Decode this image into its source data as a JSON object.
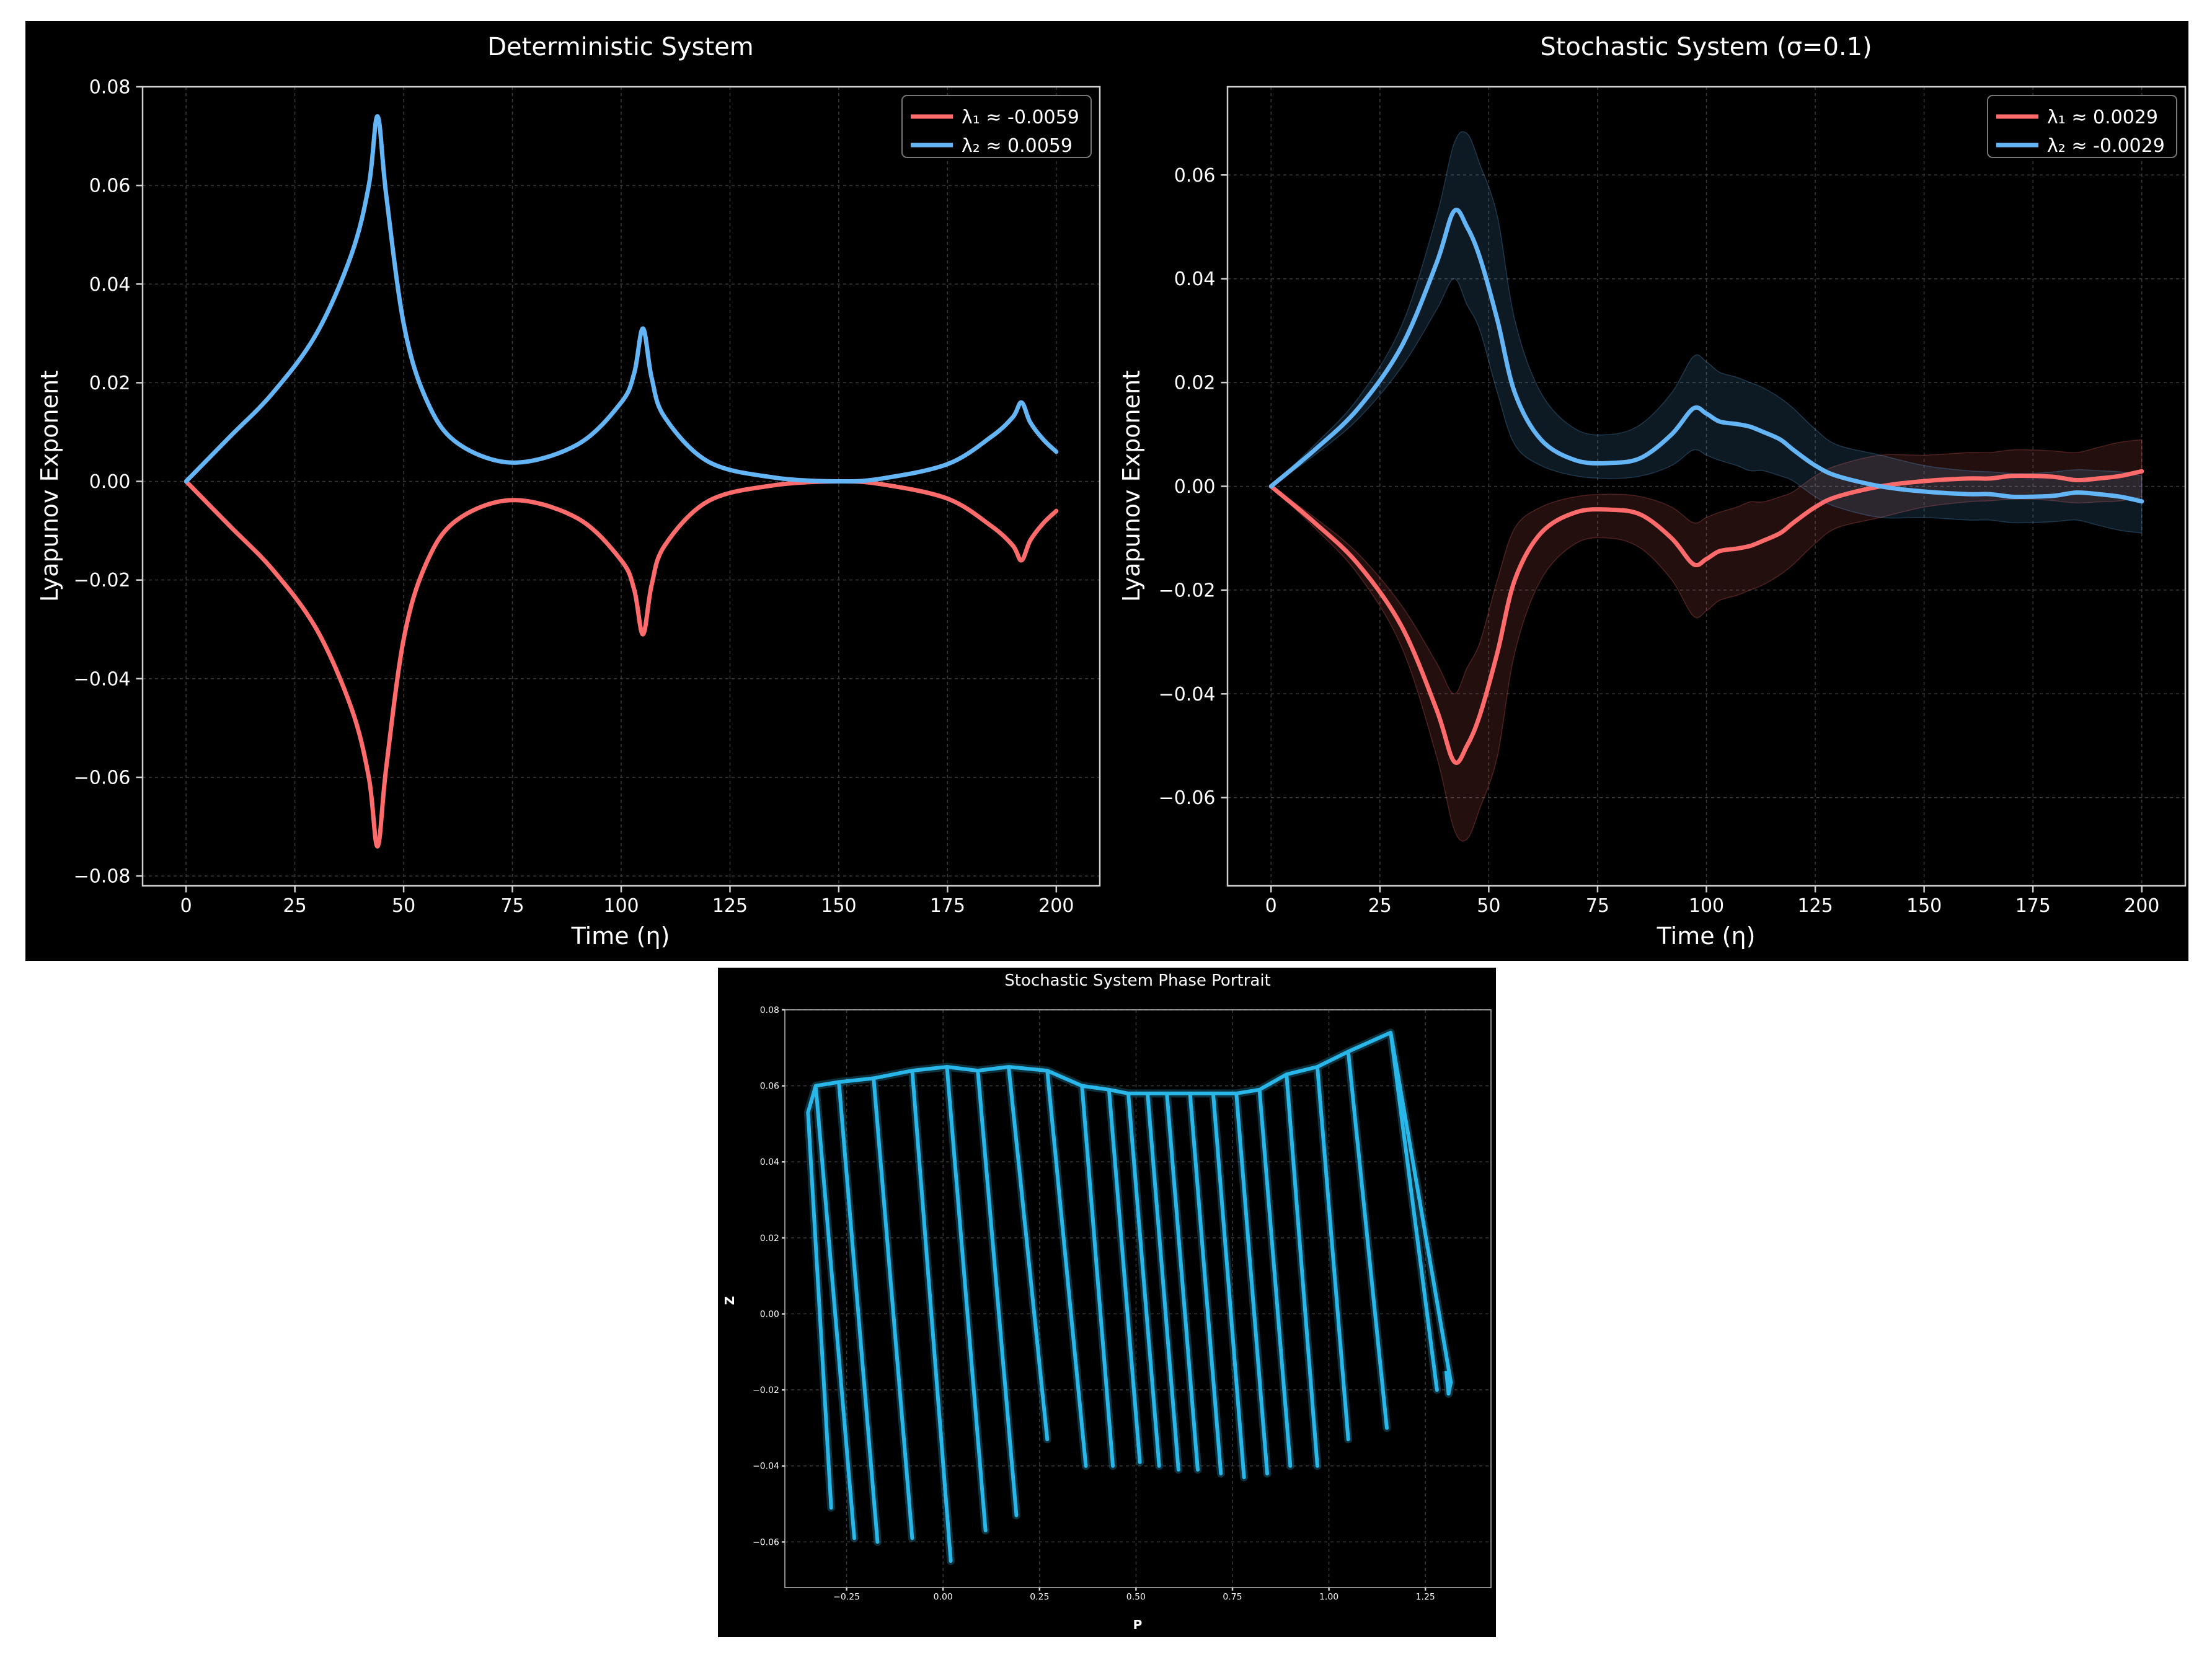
{
  "chart_data": [
    {
      "type": "line",
      "title": "Deterministic System",
      "xlabel": "Time (η)",
      "ylabel": "Lyapunov Exponent",
      "xlim": [
        -10,
        210
      ],
      "ylim": [
        -0.082,
        0.08
      ],
      "xticks": [
        0,
        25,
        50,
        75,
        100,
        125,
        150,
        175,
        200
      ],
      "yticks": [
        -0.08,
        -0.06,
        -0.04,
        -0.02,
        0.0,
        0.02,
        0.04,
        0.06,
        0.08
      ],
      "xtick_labels": [
        "0",
        "25",
        "50",
        "75",
        "100",
        "125",
        "150",
        "175",
        "200"
      ],
      "ytick_labels": [
        "−0.08",
        "−0.06",
        "−0.04",
        "−0.02",
        "0.00",
        "0.02",
        "0.04",
        "0.06",
        "0.08"
      ],
      "grid": true,
      "legend_position": "top-right",
      "series": [
        {
          "name": "λ₁ ≈ -0.0059",
          "color": "#ff6b6b",
          "x": [
            0,
            10,
            20,
            30,
            38,
            42,
            44,
            46,
            50,
            55,
            62,
            75,
            90,
            100,
            103,
            105,
            107,
            110,
            120,
            135,
            150,
            160,
            175,
            185,
            190,
            192,
            194,
            197,
            200
          ],
          "y": [
            0,
            -0.009,
            -0.018,
            -0.03,
            -0.046,
            -0.06,
            -0.074,
            -0.058,
            -0.032,
            -0.017,
            -0.008,
            -0.0038,
            -0.0075,
            -0.016,
            -0.022,
            -0.031,
            -0.021,
            -0.013,
            -0.004,
            -0.0008,
            0,
            -0.0006,
            -0.0035,
            -0.009,
            -0.013,
            -0.016,
            -0.012,
            -0.0085,
            -0.006
          ]
        },
        {
          "name": "λ₂ ≈ 0.0059",
          "color": "#64b5f6",
          "x": [
            0,
            10,
            20,
            30,
            38,
            42,
            44,
            46,
            50,
            55,
            62,
            75,
            90,
            100,
            103,
            105,
            107,
            110,
            120,
            135,
            150,
            160,
            175,
            185,
            190,
            192,
            194,
            197,
            200
          ],
          "y": [
            0,
            0.009,
            0.018,
            0.03,
            0.046,
            0.06,
            0.074,
            0.058,
            0.032,
            0.017,
            0.008,
            0.0038,
            0.0075,
            0.016,
            0.022,
            0.031,
            0.021,
            0.013,
            0.004,
            0.0008,
            0,
            0.0006,
            0.0035,
            0.009,
            0.013,
            0.016,
            0.012,
            0.0085,
            0.006
          ]
        }
      ]
    },
    {
      "type": "line",
      "title": "Stochastic System (σ=0.1)",
      "xlabel": "Time (η)",
      "ylabel": "Lyapunov Exponent",
      "xlim": [
        -10,
        210
      ],
      "ylim": [
        -0.077,
        0.077
      ],
      "xticks": [
        0,
        25,
        50,
        75,
        100,
        125,
        150,
        175,
        200
      ],
      "yticks": [
        -0.06,
        -0.04,
        -0.02,
        0.0,
        0.02,
        0.04,
        0.06
      ],
      "xtick_labels": [
        "0",
        "25",
        "50",
        "75",
        "100",
        "125",
        "150",
        "175",
        "200"
      ],
      "ytick_labels": [
        "−0.06",
        "−0.04",
        "−0.02",
        "0.00",
        "0.02",
        "0.04",
        "0.06"
      ],
      "grid": true,
      "legend_position": "top-right",
      "series": [
        {
          "name": "λ₁ ≈ 0.0029",
          "color": "#ff6b6b",
          "x": [
            0,
            10,
            20,
            30,
            38,
            42,
            45,
            48,
            52,
            56,
            62,
            70,
            78,
            85,
            92,
            97,
            100,
            103,
            107,
            110,
            113,
            117,
            120,
            125,
            130,
            140,
            150,
            160,
            165,
            170,
            175,
            180,
            185,
            190,
            195,
            200
          ],
          "y": [
            0,
            -0.007,
            -0.015,
            -0.027,
            -0.043,
            -0.053,
            -0.05,
            -0.044,
            -0.032,
            -0.018,
            -0.009,
            -0.005,
            -0.0045,
            -0.0055,
            -0.01,
            -0.015,
            -0.014,
            -0.0125,
            -0.012,
            -0.0115,
            -0.0105,
            -0.009,
            -0.007,
            -0.004,
            -0.002,
            0.0,
            0.001,
            0.0015,
            0.0015,
            0.002,
            0.002,
            0.0018,
            0.0012,
            0.0015,
            0.002,
            0.0029
          ],
          "band_low": [
            0,
            -0.008,
            -0.017,
            -0.031,
            -0.052,
            -0.066,
            -0.068,
            -0.062,
            -0.052,
            -0.032,
            -0.018,
            -0.011,
            -0.01,
            -0.012,
            -0.018,
            -0.025,
            -0.024,
            -0.022,
            -0.021,
            -0.02,
            -0.019,
            -0.017,
            -0.015,
            -0.011,
            -0.008,
            -0.006,
            -0.004,
            -0.003,
            -0.0028,
            -0.0025,
            -0.0025,
            -0.0028,
            -0.0032,
            -0.003,
            -0.0028,
            -0.002
          ],
          "band_high": [
            0,
            -0.006,
            -0.013,
            -0.023,
            -0.034,
            -0.04,
            -0.035,
            -0.03,
            -0.018,
            -0.008,
            -0.004,
            -0.002,
            -0.0015,
            -0.002,
            -0.004,
            -0.007,
            -0.006,
            -0.005,
            -0.004,
            -0.003,
            -0.003,
            -0.002,
            -0.001,
            0.002,
            0.004,
            0.006,
            0.006,
            0.0065,
            0.0065,
            0.007,
            0.007,
            0.0068,
            0.0065,
            0.0075,
            0.0085,
            0.009
          ]
        },
        {
          "name": "λ₂ ≈ -0.0029",
          "color": "#64b5f6",
          "x": [
            0,
            10,
            20,
            30,
            38,
            42,
            45,
            48,
            52,
            56,
            62,
            70,
            78,
            85,
            92,
            97,
            100,
            103,
            107,
            110,
            113,
            117,
            120,
            125,
            130,
            140,
            150,
            160,
            165,
            170,
            175,
            180,
            185,
            190,
            195,
            200
          ],
          "y": [
            0,
            0.007,
            0.015,
            0.027,
            0.043,
            0.053,
            0.05,
            0.044,
            0.032,
            0.018,
            0.009,
            0.005,
            0.0045,
            0.0055,
            0.01,
            0.015,
            0.014,
            0.0125,
            0.012,
            0.0115,
            0.0105,
            0.009,
            0.007,
            0.004,
            0.002,
            0.0,
            -0.001,
            -0.0015,
            -0.0015,
            -0.002,
            -0.002,
            -0.0018,
            -0.0012,
            -0.0015,
            -0.002,
            -0.0029
          ],
          "band_low": [
            0,
            0.006,
            0.013,
            0.023,
            0.034,
            0.04,
            0.035,
            0.03,
            0.018,
            0.008,
            0.004,
            0.002,
            0.0015,
            0.002,
            0.004,
            0.007,
            0.006,
            0.005,
            0.004,
            0.003,
            0.003,
            0.002,
            0.001,
            -0.002,
            -0.004,
            -0.006,
            -0.006,
            -0.0065,
            -0.0065,
            -0.007,
            -0.007,
            -0.0068,
            -0.0065,
            -0.0075,
            -0.0085,
            -0.009
          ],
          "band_high": [
            0,
            0.008,
            0.017,
            0.031,
            0.052,
            0.066,
            0.068,
            0.062,
            0.052,
            0.032,
            0.018,
            0.011,
            0.01,
            0.012,
            0.018,
            0.025,
            0.024,
            0.022,
            0.021,
            0.02,
            0.019,
            0.017,
            0.015,
            0.011,
            0.008,
            0.006,
            0.004,
            0.003,
            0.0028,
            0.0025,
            0.0025,
            0.0028,
            0.0032,
            0.003,
            0.0028,
            0.002
          ]
        }
      ]
    },
    {
      "type": "line",
      "title": "Stochastic System Phase Portrait",
      "xlabel": "P",
      "ylabel": "Z",
      "xlim": [
        -0.41,
        1.42
      ],
      "ylim": [
        -0.072,
        0.08
      ],
      "xticks": [
        -0.25,
        0.0,
        0.25,
        0.5,
        0.75,
        1.0,
        1.25
      ],
      "yticks": [
        -0.06,
        -0.04,
        -0.02,
        0.0,
        0.02,
        0.04,
        0.06,
        0.08
      ],
      "xtick_labels": [
        "−0.25",
        "0.00",
        "0.25",
        "0.50",
        "0.75",
        "1.00",
        "1.25"
      ],
      "ytick_labels": [
        "−0.06",
        "−0.04",
        "−0.02",
        "0.00",
        "0.02",
        "0.04",
        "0.06",
        "0.08"
      ],
      "grid": true,
      "series": [
        {
          "name": "",
          "color": "#29b6e8",
          "loops": [
            {
              "c": -0.32,
              "a": 0.03,
              "top": 0.053,
              "bot": -0.051
            },
            {
              "c": -0.28,
              "a": 0.05,
              "top": 0.06,
              "bot": -0.059
            },
            {
              "c": -0.22,
              "a": 0.05,
              "top": 0.061,
              "bot": -0.06
            },
            {
              "c": -0.13,
              "a": 0.05,
              "top": 0.062,
              "bot": -0.059
            },
            {
              "c": -0.03,
              "a": 0.05,
              "top": 0.064,
              "bot": -0.065
            },
            {
              "c": 0.06,
              "a": 0.05,
              "top": 0.065,
              "bot": -0.057
            },
            {
              "c": 0.14,
              "a": 0.05,
              "top": 0.064,
              "bot": -0.053
            },
            {
              "c": 0.22,
              "a": 0.05,
              "top": 0.065,
              "bot": -0.033
            },
            {
              "c": 0.32,
              "a": 0.05,
              "top": 0.064,
              "bot": -0.04
            },
            {
              "c": 0.4,
              "a": 0.04,
              "top": 0.06,
              "bot": -0.04
            },
            {
              "c": 0.47,
              "a": 0.04,
              "top": 0.059,
              "bot": -0.039
            },
            {
              "c": 0.52,
              "a": 0.04,
              "top": 0.058,
              "bot": -0.04
            },
            {
              "c": 0.57,
              "a": 0.04,
              "top": 0.058,
              "bot": -0.041
            },
            {
              "c": 0.62,
              "a": 0.04,
              "top": 0.058,
              "bot": -0.041
            },
            {
              "c": 0.68,
              "a": 0.04,
              "top": 0.058,
              "bot": -0.042
            },
            {
              "c": 0.74,
              "a": 0.04,
              "top": 0.058,
              "bot": -0.043
            },
            {
              "c": 0.8,
              "a": 0.04,
              "top": 0.058,
              "bot": -0.042
            },
            {
              "c": 0.86,
              "a": 0.04,
              "top": 0.059,
              "bot": -0.04
            },
            {
              "c": 0.93,
              "a": 0.04,
              "top": 0.063,
              "bot": -0.04
            },
            {
              "c": 1.01,
              "a": 0.04,
              "top": 0.065,
              "bot": -0.033
            },
            {
              "c": 1.1,
              "a": 0.05,
              "top": 0.069,
              "bot": -0.03
            },
            {
              "c": 1.22,
              "a": 0.06,
              "top": 0.074,
              "bot": -0.02
            }
          ]
        }
      ]
    }
  ]
}
